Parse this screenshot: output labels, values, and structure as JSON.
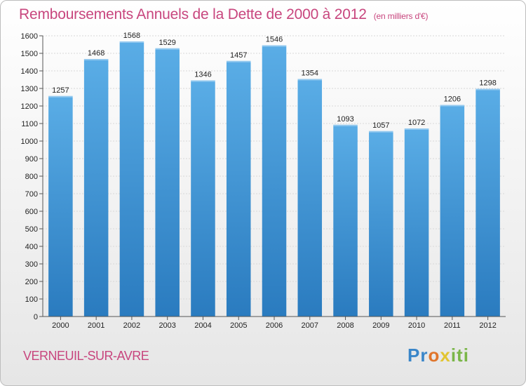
{
  "header": {
    "title": "Remboursements Annuels de la Dette de 2000 à 2012",
    "subtitle": "(en milliers d'€)"
  },
  "footer": {
    "city": "VERNEUIL-SUR-AVRE",
    "logo_parts": [
      "Pr",
      "o",
      "x",
      "iti"
    ]
  },
  "colors": {
    "title": "#c8467e",
    "bar_top": "#5aade6",
    "bar_bottom": "#2a7bbf",
    "grid": "#d8d8d8"
  },
  "chart_data": {
    "type": "bar",
    "title": "Remboursements Annuels de la Dette de 2000 à 2012",
    "xlabel": "",
    "ylabel": "",
    "categories": [
      "2000",
      "2001",
      "2002",
      "2003",
      "2004",
      "2005",
      "2006",
      "2007",
      "2008",
      "2009",
      "2010",
      "2011",
      "2012"
    ],
    "values": [
      1257,
      1468,
      1568,
      1529,
      1346,
      1457,
      1546,
      1354,
      1093,
      1057,
      1072,
      1206,
      1298
    ],
    "ylim": [
      0,
      1600
    ],
    "yticks": [
      0,
      100,
      200,
      300,
      400,
      500,
      600,
      700,
      800,
      900,
      1000,
      1100,
      1200,
      1300,
      1400,
      1500,
      1600
    ],
    "grid": true
  }
}
